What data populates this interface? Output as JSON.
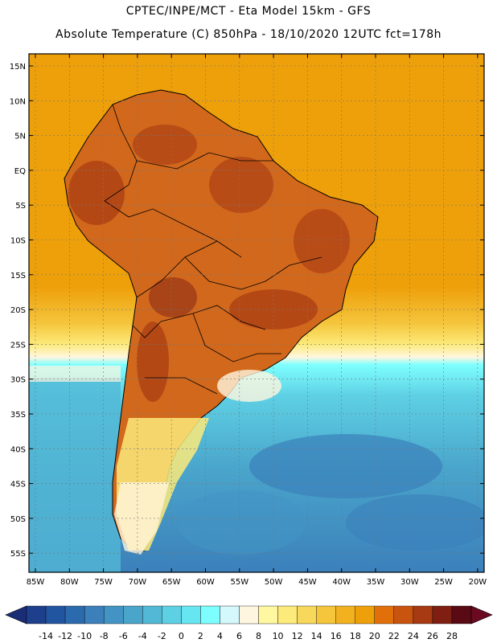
{
  "title_line1": "CPTEC/INPE/MCT -  Eta Model 15km - GFS",
  "title_line2": "Absolute Temperature (C) 850hPa - 18/10/2020 12UTC fct=178h",
  "lat_labels": [
    "15N",
    "10N",
    "5N",
    "EQ",
    "5S",
    "10S",
    "15S",
    "20S",
    "25S",
    "30S",
    "35S",
    "40S",
    "45S",
    "50S",
    "55S"
  ],
  "lon_labels": [
    "85W",
    "80W",
    "75W",
    "70W",
    "65W",
    "60W",
    "55W",
    "50W",
    "45W",
    "40W",
    "35W",
    "30W",
    "25W",
    "20W"
  ],
  "colorbar": {
    "ticks": [
      "-14",
      "-12",
      "-10",
      "-8",
      "-6",
      "-4",
      "-2",
      "0",
      "2",
      "4",
      "6",
      "8",
      "10",
      "12",
      "14",
      "16",
      "18",
      "20",
      "22",
      "24",
      "26",
      "28"
    ],
    "colors": [
      "#1e3f8c",
      "#22559f",
      "#2c6aae",
      "#3b80bb",
      "#4394c4",
      "#4aa5cb",
      "#52b8d6",
      "#5ed0e4",
      "#66e6f0",
      "#7effff",
      "#d4f8fc",
      "#fff6df",
      "#fff8a0",
      "#fcea7a",
      "#f8d85a",
      "#f5c53c",
      "#f2b11e",
      "#eea00a",
      "#e2700a",
      "#c95410",
      "#a73a12",
      "#7e1f12",
      "#5a0a15"
    ],
    "over_color": "#6b0920",
    "under_color": "#1a2e78"
  },
  "map": {
    "ocean_north_color": "#eea00a",
    "land_warm_color": "#d2681c",
    "land_hot_color": "#a73a12",
    "ocean_cold_color": "#4aa5cb",
    "ocean_coldest_color": "#3b80bb"
  }
}
